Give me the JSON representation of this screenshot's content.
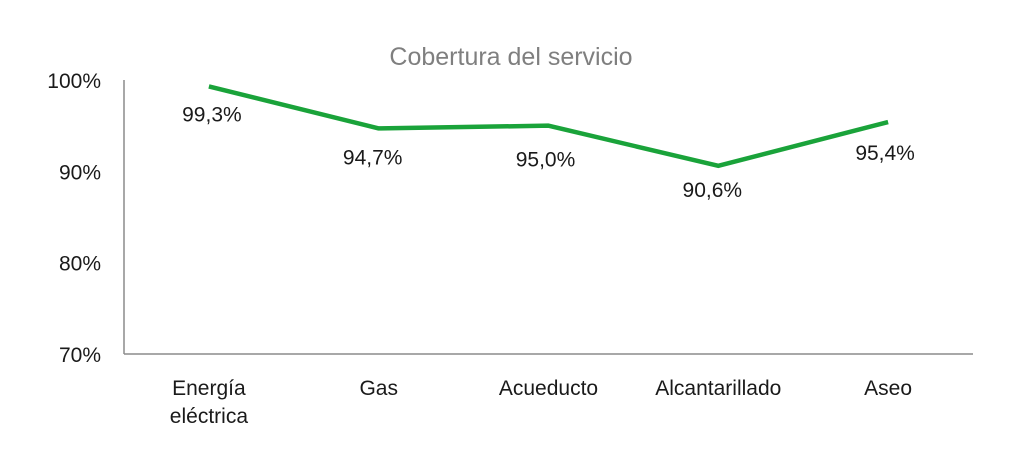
{
  "chart_data": {
    "type": "line",
    "title": "Cobertura del servicio",
    "xlabel": "",
    "ylabel": "",
    "categories": [
      "Energía eléctrica",
      "Gas",
      "Acueducto",
      "Alcantarillado",
      "Aseo"
    ],
    "category_lines": [
      [
        "Energía",
        "eléctrica"
      ],
      [
        "Gas"
      ],
      [
        "Acueducto"
      ],
      [
        "Alcantarillado"
      ],
      [
        "Aseo"
      ]
    ],
    "series": [
      {
        "name": "Cobertura del servicio",
        "values": [
          99.3,
          94.7,
          95.0,
          90.6,
          95.4
        ],
        "labels": [
          "99,3%",
          "94,7%",
          "95,0%",
          "90,6%",
          "95,4%"
        ],
        "color": "#1aa33a"
      }
    ],
    "ylim": [
      70,
      100
    ],
    "yticks": [
      100,
      90,
      80,
      70
    ],
    "ytick_labels": [
      "100%",
      "90%",
      "80%",
      "70%"
    ],
    "grid": false,
    "legend": "none"
  },
  "colors": {
    "line": "#1aa33a",
    "axis": "#8c8c8c",
    "title": "#7f7f7f",
    "text": "#1a1a1a"
  }
}
